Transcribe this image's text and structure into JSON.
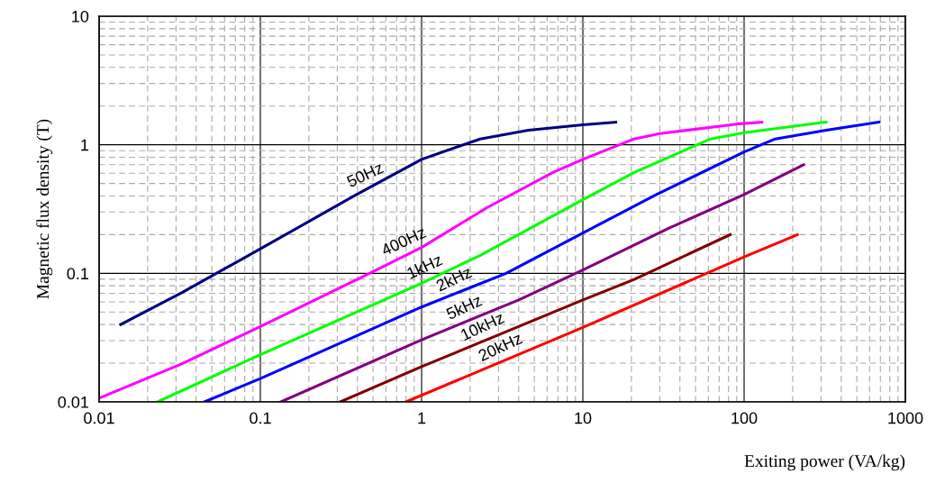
{
  "chart_data": {
    "type": "line",
    "xlabel": "Exiting power (VA/kg)",
    "ylabel": "Magnetic flux density (T)",
    "log": "xy",
    "xlim": [
      0.01,
      1000
    ],
    "ylim": [
      0.01,
      10
    ],
    "xticks": [
      0.01,
      0.1,
      1,
      10,
      100,
      1000
    ],
    "yticks": [
      0.01,
      0.1,
      1,
      10
    ],
    "grid": true,
    "legend": false,
    "marker": "none",
    "line_style": "solid",
    "series": [
      {
        "name": "50Hz",
        "color": "#000080",
        "x": [
          0.0136,
          0.0327,
          0.1,
          0.388,
          1,
          2.31,
          4.6,
          10,
          16
        ],
        "values": [
          0.04,
          0.071,
          0.155,
          0.405,
          0.77,
          1.11,
          1.3,
          1.43,
          1.5
        ]
      },
      {
        "name": "400Hz",
        "color": "#ff00ff",
        "x": [
          0.01,
          0.0327,
          0.1,
          0.46,
          1,
          2.54,
          6.6,
          10,
          20.8,
          30,
          90,
          129
        ],
        "values": [
          0.0107,
          0.0198,
          0.0386,
          0.098,
          0.159,
          0.324,
          0.615,
          0.77,
          1.11,
          1.22,
          1.45,
          1.5
        ]
      },
      {
        "name": "1kHz",
        "color": "#00ff00",
        "x": [
          0.023,
          0.1,
          1,
          2.31,
          10,
          20.8,
          62,
          100,
          323
        ],
        "values": [
          0.01,
          0.0233,
          0.0838,
          0.138,
          0.374,
          0.61,
          1.11,
          1.24,
          1.5
        ]
      },
      {
        "name": "2kHz",
        "color": "#0000ff",
        "x": [
          0.045,
          0.1,
          1,
          3.34,
          10,
          28.6,
          100,
          156,
          323,
          687
        ],
        "values": [
          0.01,
          0.0152,
          0.0547,
          0.1,
          0.206,
          0.41,
          0.88,
          1.11,
          1.3,
          1.5
        ]
      },
      {
        "name": "5kHz",
        "color": "#800080",
        "x": [
          0.134,
          1,
          4.0,
          10,
          34,
          100,
          234
        ],
        "values": [
          0.01,
          0.0304,
          0.062,
          0.106,
          0.224,
          0.41,
          0.7
        ]
      },
      {
        "name": "10kHz",
        "color": "#800000",
        "x": [
          0.313,
          1,
          10,
          20.8,
          82
        ],
        "values": [
          0.01,
          0.0188,
          0.062,
          0.0897,
          0.2
        ]
      },
      {
        "name": "20kHz",
        "color": "#ff0000",
        "x": [
          0.8,
          10,
          100,
          214
        ],
        "values": [
          0.01,
          0.038,
          0.134,
          0.2
        ]
      }
    ]
  }
}
